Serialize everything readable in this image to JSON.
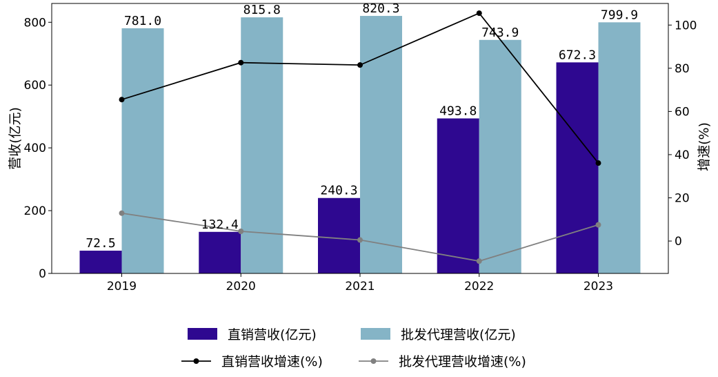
{
  "chart_data": {
    "type": "bar",
    "title": "",
    "categories": [
      "2019",
      "2020",
      "2021",
      "2022",
      "2023"
    ],
    "series": [
      {
        "name": "直销营收(亿元)",
        "kind": "bar",
        "axis": "left",
        "color": "#2e0890",
        "values": [
          72.5,
          132.4,
          240.3,
          493.8,
          672.3
        ],
        "labels": [
          "72.5",
          "132.4",
          "240.3",
          "493.8",
          "672.3"
        ]
      },
      {
        "name": "批发代理营收(亿元)",
        "kind": "bar",
        "axis": "left",
        "color": "#85b4c6",
        "values": [
          781.0,
          815.8,
          820.3,
          743.9,
          799.9
        ],
        "labels": [
          "781.0",
          "815.8",
          "820.3",
          "743.9",
          "799.9"
        ]
      },
      {
        "name": "直销营收增速(%)",
        "kind": "line",
        "axis": "right",
        "color": "#000000",
        "values": [
          65.5,
          82.6,
          81.5,
          105.5,
          36.1
        ]
      },
      {
        "name": "批发代理营收增速(%)",
        "kind": "line",
        "axis": "right",
        "color": "#808080",
        "values": [
          12.9,
          4.5,
          0.5,
          -9.3,
          7.5
        ]
      }
    ],
    "ylabel": "营收(亿元)",
    "y2label": "增速(%)",
    "ylim": [
      0,
      860
    ],
    "y2lim": [
      -15,
      110
    ],
    "yticks": [
      0,
      200,
      400,
      600,
      800
    ],
    "y2ticks": [
      0,
      20,
      40,
      60,
      80,
      100
    ],
    "grid": false,
    "legend_position": "bottom"
  }
}
